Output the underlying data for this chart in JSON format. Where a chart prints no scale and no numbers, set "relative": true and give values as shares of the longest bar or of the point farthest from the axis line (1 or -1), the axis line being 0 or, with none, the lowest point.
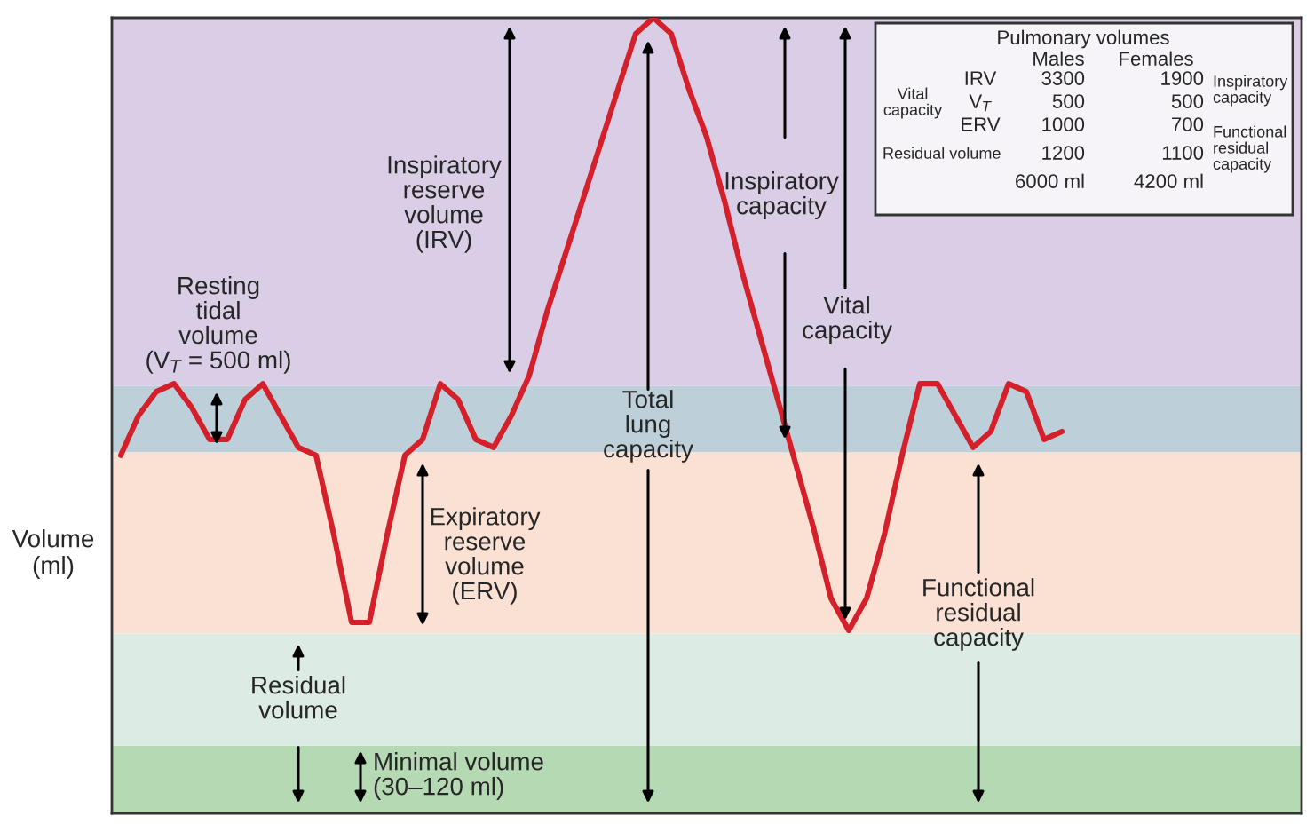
{
  "chart_data": {
    "type": "line",
    "relative": true,
    "ylabel": "Volume\n(ml)",
    "tick_labels": false,
    "legend": false,
    "marker": "none",
    "line_style": "solid",
    "categories": [
      null,
      null,
      null,
      null,
      null,
      null,
      null,
      null,
      null,
      null,
      null,
      null,
      null,
      null,
      null,
      null,
      null,
      null,
      null,
      null,
      null,
      null,
      null,
      null,
      null,
      null,
      null,
      null,
      null,
      null,
      null,
      null,
      null,
      null,
      null,
      null,
      null,
      null,
      null,
      null,
      null,
      null,
      null,
      null,
      null,
      null,
      null,
      null,
      null,
      null,
      null,
      null,
      null,
      null,
      null,
      null,
      null,
      null,
      null,
      null,
      null,
      null,
      null,
      null,
      null,
      null,
      null
    ],
    "series": [
      {
        "color": "#d4202a",
        "values": [
          0.45,
          0.5,
          0.53,
          0.54,
          0.51,
          0.47,
          0.47,
          0.52,
          0.54,
          0.5,
          0.46,
          0.45,
          0.35,
          0.24,
          0.24,
          0.35,
          0.45,
          0.47,
          0.54,
          0.52,
          0.47,
          0.46,
          0.5,
          0.55,
          0.63,
          0.7,
          0.77,
          0.84,
          0.91,
          0.98,
          1.0,
          0.98,
          0.91,
          0.85,
          0.77,
          0.68,
          0.6,
          0.52,
          0.44,
          0.36,
          0.27,
          0.23,
          0.27,
          0.35,
          0.45,
          0.54,
          0.54,
          0.5,
          0.46,
          0.48,
          0.54,
          0.53,
          0.47,
          0.48,
          null,
          null,
          null,
          null,
          null,
          null,
          null,
          null,
          null,
          null,
          null,
          null,
          null
        ]
      }
    ],
    "bands": [
      {
        "axis": "y",
        "from": 0,
        "to": 0.085,
        "color": "#b5d9b2"
      },
      {
        "axis": "y",
        "from": 0.085,
        "to": 0.226,
        "color": "#dcebe3"
      },
      {
        "axis": "y",
        "from": 0.226,
        "to": 0.454,
        "color": "#fbe1d4"
      },
      {
        "axis": "y",
        "from": 0.454,
        "to": 0.537,
        "color": "#bdd0da"
      },
      {
        "axis": "y",
        "from": 0.537,
        "to": 1.0,
        "color": "#dacde6"
      }
    ],
    "annotations": [
      "Inspiratory\nreserve\nvolume\n(IRV)",
      "Resting\ntidal\nvolume\n(V$_{T}$ = 500 ml)",
      "Expiratory\nreserve\nvolume\n(ERV)",
      "Total\nlung\ncapacity",
      "Inspiratory\ncapacity",
      "Vital\ncapacity",
      "Functional\nresidual\ncapacity",
      "Residual\nvolume",
      "Minimal volume\n(30–120 ml)",
      "Pulmonary volumes",
      "Males",
      "Females",
      "Vital\ncapacity",
      "IRV",
      "V$_{T}$",
      "ERV",
      "Residual volume",
      "3300",
      "500",
      "1000",
      "1200",
      "6000 ml",
      "1900",
      "500",
      "700",
      "1100",
      "4200 ml",
      "Inspiratory\ncapacity",
      "Functional\nresidual\ncapacity"
    ]
  }
}
